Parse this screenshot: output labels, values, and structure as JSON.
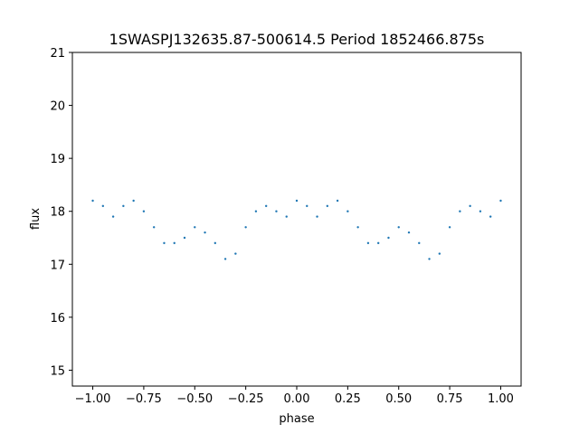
{
  "chart_data": {
    "type": "scatter",
    "title": "1SWASPJ132635.87-500614.5 Period 1852466.875s",
    "xlabel": "phase",
    "ylabel": "flux",
    "xlim": [
      -1.1,
      1.1
    ],
    "ylim": [
      14.7,
      21.0
    ],
    "x_ticks": [
      -1.0,
      -0.75,
      -0.5,
      -0.25,
      0.0,
      0.25,
      0.5,
      0.75,
      1.0
    ],
    "x_tick_labels": [
      "−1.00",
      "−0.75",
      "−0.50",
      "−0.25",
      "0.00",
      "0.25",
      "0.50",
      "0.75",
      "1.00"
    ],
    "y_ticks": [
      15,
      16,
      17,
      18,
      19,
      20,
      21
    ],
    "y_tick_labels": [
      "15",
      "16",
      "17",
      "18",
      "19",
      "20",
      "21"
    ],
    "grid": false,
    "legend": "none",
    "marker_color": "#1f77b4",
    "series": [
      {
        "x": [
          -1.0,
          -0.95,
          -0.9,
          -0.85,
          -0.8,
          -0.75,
          -0.7,
          -0.65,
          -0.6,
          -0.55,
          -0.5,
          -0.45,
          -0.4,
          -0.35,
          -0.3,
          -0.25,
          -0.2,
          -0.15,
          -0.1,
          -0.05,
          0.0,
          0.05,
          0.1,
          0.15,
          0.2,
          0.25,
          0.3,
          0.35,
          0.4,
          0.45,
          0.5,
          0.55,
          0.6,
          0.65,
          0.7,
          0.75,
          0.8,
          0.85,
          0.9,
          0.95,
          1.0
        ],
        "y": [
          18.2,
          18.1,
          17.9,
          18.1,
          18.2,
          18.0,
          17.7,
          17.4,
          17.4,
          17.5,
          17.7,
          17.6,
          17.4,
          17.1,
          17.2,
          17.7,
          18.0,
          18.1,
          18.0,
          17.9,
          18.2,
          18.1,
          17.9,
          18.1,
          18.2,
          18.0,
          17.7,
          17.4,
          17.4,
          17.5,
          17.7,
          17.6,
          17.4,
          17.1,
          17.2,
          17.7,
          18.0,
          18.1,
          18.0,
          17.9,
          18.2
        ]
      }
    ]
  }
}
